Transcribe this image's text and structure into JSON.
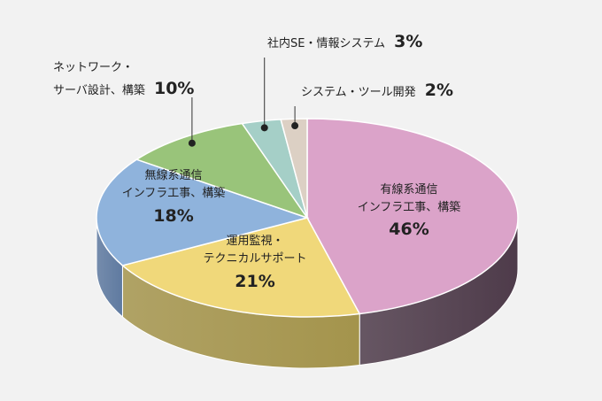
{
  "chart_data": {
    "type": "pie",
    "style": "3d",
    "categories": [
      "有線系通信インフラ工事、構築",
      "運用監視・テクニカルサポート",
      "無線系通信インフラ工事、構築",
      "ネットワーク・サーバ設計、構築",
      "社内SE・情報システム",
      "システム・ツール開発"
    ],
    "values": [
      46,
      21,
      18,
      10,
      3,
      2
    ],
    "unit": "%",
    "colors": [
      "#dba3c9",
      "#f0d87a",
      "#8fb3dc",
      "#99c47a",
      "#a5cfc7",
      "#dcd0c4"
    ],
    "side_colors": [
      "#4e3b4a",
      "#a4944c",
      "#5f7aa0",
      "#6d8c54",
      "#76938e",
      "#9e958c"
    ],
    "labels": [
      {
        "line1": "有線系通信",
        "line2": "インフラ工事、構築",
        "pct": "46%"
      },
      {
        "line1": "運用監視・",
        "line2": "テクニカルサポート",
        "pct": "21%"
      },
      {
        "line1": "無線系通信",
        "line2": "インフラ工事、構築",
        "pct": "18%"
      },
      {
        "line1": "ネットワーク・",
        "line2": "サーバ設計、構築",
        "pct": "10%"
      },
      {
        "line1": "社内SE・情報システム",
        "pct": "3%"
      },
      {
        "line1": "システム・ツール開発",
        "pct": "2%"
      }
    ]
  }
}
